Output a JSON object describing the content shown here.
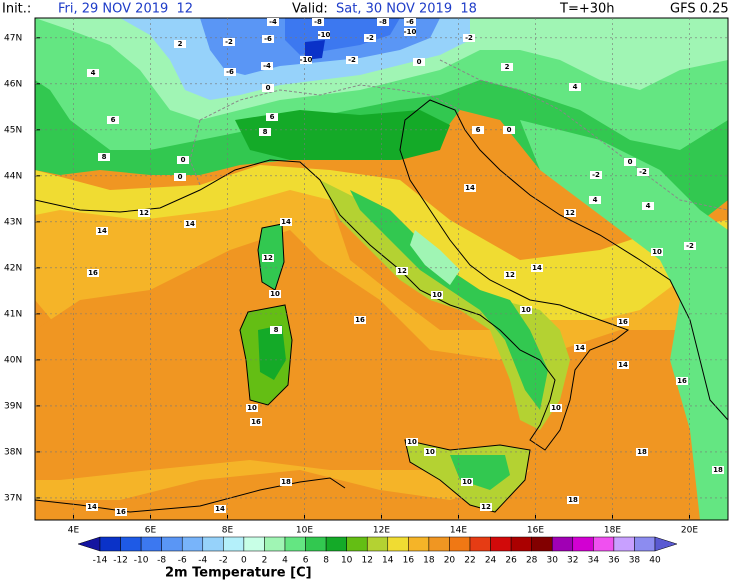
{
  "header": {
    "init_label": "Init.:",
    "init_time": "Fri, 29 NOV 2019  12",
    "valid_label": "Valid:",
    "valid_time": "Sat, 30 NOV 2019  18",
    "lead": "T=+30h",
    "model": "GFS 0.25"
  },
  "map": {
    "lon_range": [
      3,
      21
    ],
    "lat_range": [
      36.52,
      47.43
    ],
    "lat_ticks": [
      {
        "value": 37,
        "label": "37N"
      },
      {
        "value": 38,
        "label": "38N"
      },
      {
        "value": 39,
        "label": "39N"
      },
      {
        "value": 40,
        "label": "40N"
      },
      {
        "value": 41,
        "label": "41N"
      },
      {
        "value": 42,
        "label": "42N"
      },
      {
        "value": 43,
        "label": "43N"
      },
      {
        "value": 44,
        "label": "44N"
      },
      {
        "value": 45,
        "label": "45N"
      },
      {
        "value": 46,
        "label": "46N"
      },
      {
        "value": 47,
        "label": "47N"
      }
    ],
    "lon_ticks": [
      {
        "value": 4,
        "label": "4E"
      },
      {
        "value": 6,
        "label": "6E"
      },
      {
        "value": 8,
        "label": "8E"
      },
      {
        "value": 10,
        "label": "10E"
      },
      {
        "value": 12,
        "label": "12E"
      },
      {
        "value": 14,
        "label": "14E"
      },
      {
        "value": 16,
        "label": "16E"
      },
      {
        "value": 18,
        "label": "18E"
      },
      {
        "value": 20,
        "label": "20E"
      }
    ],
    "contour_labels": [
      -4,
      -8,
      -8,
      -6,
      -10,
      2,
      -2,
      -6,
      -10,
      -2,
      -2,
      4,
      -6,
      -4,
      -10,
      -2,
      0,
      2,
      4,
      0,
      6,
      6,
      6,
      0,
      8,
      8,
      0,
      -2,
      -2,
      0,
      0,
      14,
      4,
      4,
      12,
      14,
      14,
      14,
      12,
      10,
      -2,
      16,
      12,
      12,
      10,
      14,
      12,
      10,
      16,
      10,
      16,
      8,
      14,
      14,
      16,
      10,
      16,
      10,
      10,
      10,
      10,
      18,
      18,
      18,
      14,
      16,
      14,
      12,
      18
    ]
  },
  "colorbar": {
    "label": "2m Temperature [C]",
    "ticks": [
      -14,
      -12,
      -10,
      -8,
      -6,
      -4,
      -2,
      0,
      2,
      4,
      6,
      8,
      10,
      12,
      14,
      16,
      18,
      20,
      22,
      24,
      26,
      28,
      30,
      32,
      34,
      36,
      38,
      40
    ],
    "colors": [
      "#1414a0",
      "#0a32c8",
      "#1e5ae6",
      "#3c78f0",
      "#5a96f5",
      "#78b4fa",
      "#96d2fa",
      "#b4f0fa",
      "#c8ffe6",
      "#a0f5b4",
      "#64e682",
      "#32c850",
      "#14aa28",
      "#64be14",
      "#b4d232",
      "#f0dc32",
      "#f5b428",
      "#f09622",
      "#f07814",
      "#e63c14",
      "#d20a0a",
      "#aa0000",
      "#820000",
      "#a000b4",
      "#d200d2",
      "#f050f0",
      "#c8a0ff",
      "#8c8cf0",
      "#5a5ad2"
    ]
  }
}
